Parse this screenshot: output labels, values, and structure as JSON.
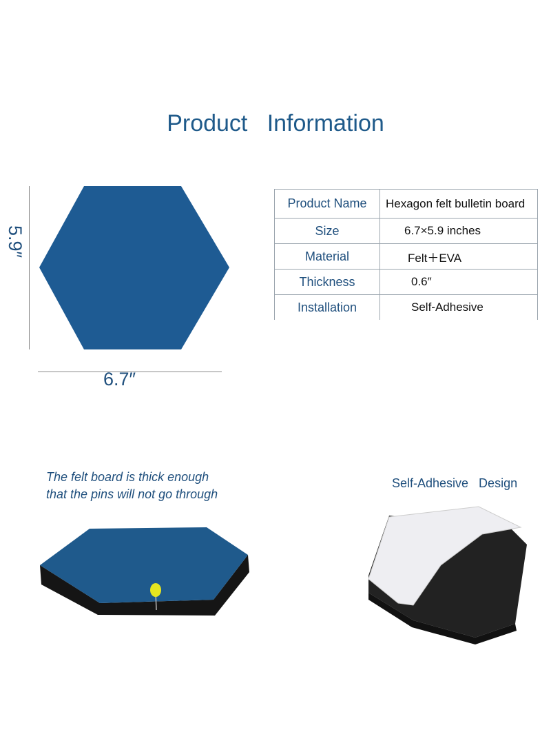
{
  "title": "Product   Information",
  "dimensions": {
    "width_label": "6.7″",
    "height_label": "5.9″"
  },
  "table": {
    "rows": [
      {
        "label": "Product Name",
        "value": "Hexagon felt bulletin board"
      },
      {
        "label": "Size",
        "value": "6.7×5.9 inches"
      },
      {
        "label": "Material",
        "value": "Felt＋EVA"
      },
      {
        "label": "Thickness",
        "value": "0.6″"
      },
      {
        "label": "Installation",
        "value": "Self-Adhesive"
      }
    ]
  },
  "captions": {
    "left_line1": "The felt board is thick enough",
    "left_line2": "that the pins will not go through",
    "right": "Self-Adhesive   Design"
  },
  "colors": {
    "felt_blue": "#1e5b93",
    "text_blue": "#1f4f7d",
    "eva_black": "#1b1b1b"
  }
}
